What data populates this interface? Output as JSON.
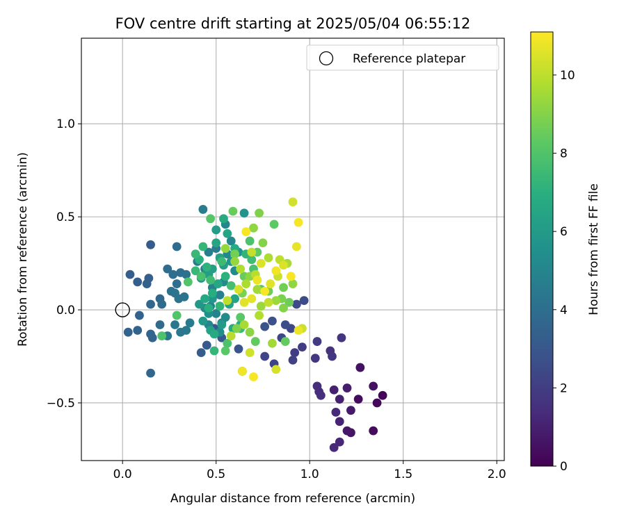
{
  "chart_data": {
    "type": "scatter",
    "title": "FOV centre drift starting at 2025/05/04 06:55:12",
    "xlabel": "Angular distance from reference (arcmin)",
    "ylabel": "Rotation from reference (arcmin)",
    "xlim": [
      -0.22,
      2.04
    ],
    "ylim": [
      -0.81,
      1.46
    ],
    "xticks": [
      0.0,
      0.5,
      1.0,
      1.5,
      2.0
    ],
    "xtick_labels": [
      "0.0",
      "0.5",
      "1.0",
      "1.5",
      "2.0"
    ],
    "yticks": [
      -0.5,
      0.0,
      0.5,
      1.0
    ],
    "ytick_labels": [
      "−0.5",
      "0.0",
      "0.5",
      "1.0"
    ],
    "grid": true,
    "legend": {
      "placement": "top-right",
      "entries": [
        {
          "label": "Reference platepar",
          "marker": "open-circle",
          "x": 0.0,
          "y": 0.0
        }
      ]
    },
    "colorbar": {
      "label": "Hours from first FF file",
      "colormap": "viridis",
      "range": [
        0,
        11.1
      ],
      "ticks": [
        0,
        2,
        4,
        6,
        8,
        10
      ],
      "tick_labels": [
        "0",
        "2",
        "4",
        "6",
        "8",
        "10"
      ]
    },
    "points": [
      [
        1.39,
        -0.46,
        0.1
      ],
      [
        1.36,
        -0.5,
        0.2
      ],
      [
        1.34,
        -0.65,
        0.3
      ],
      [
        1.26,
        -0.48,
        0.3
      ],
      [
        1.34,
        -0.41,
        0.5
      ],
      [
        1.27,
        -0.31,
        0.5
      ],
      [
        1.22,
        -0.66,
        0.6
      ],
      [
        1.2,
        -0.65,
        0.7
      ],
      [
        1.22,
        -0.54,
        0.8
      ],
      [
        1.2,
        -0.42,
        0.9
      ],
      [
        1.16,
        -0.48,
        1.0
      ],
      [
        1.13,
        -0.43,
        1.0
      ],
      [
        1.16,
        -0.6,
        1.1
      ],
      [
        1.16,
        -0.71,
        1.2
      ],
      [
        1.13,
        -0.74,
        1.3
      ],
      [
        1.14,
        -0.55,
        1.3
      ],
      [
        1.05,
        -0.44,
        1.4
      ],
      [
        1.04,
        -0.41,
        1.5
      ],
      [
        1.06,
        -0.46,
        1.5
      ],
      [
        1.11,
        -0.22,
        1.6
      ],
      [
        1.12,
        -0.25,
        1.7
      ],
      [
        1.17,
        -0.15,
        1.7
      ],
      [
        1.03,
        -0.26,
        1.8
      ],
      [
        1.04,
        -0.17,
        1.9
      ],
      [
        0.96,
        -0.2,
        2.0
      ],
      [
        0.92,
        -0.23,
        2.0
      ],
      [
        0.91,
        -0.27,
        2.1
      ],
      [
        0.81,
        -0.29,
        2.2
      ],
      [
        0.76,
        -0.25,
        2.3
      ],
      [
        0.85,
        -0.15,
        2.4
      ],
      [
        0.9,
        -0.1,
        2.4
      ],
      [
        0.93,
        0.03,
        2.5
      ],
      [
        0.97,
        0.05,
        2.5
      ],
      [
        0.87,
        -0.08,
        2.6
      ],
      [
        0.8,
        -0.06,
        2.7
      ],
      [
        0.76,
        -0.09,
        2.8
      ],
      [
        0.62,
        -0.21,
        2.9
      ],
      [
        0.53,
        -0.15,
        3.0
      ],
      [
        0.49,
        -0.1,
        3.0
      ],
      [
        0.45,
        -0.19,
        3.1
      ],
      [
        0.42,
        -0.23,
        3.2
      ],
      [
        0.15,
        0.35,
        3.2
      ],
      [
        0.04,
        0.19,
        3.3
      ],
      [
        0.08,
        0.15,
        3.3
      ],
      [
        0.14,
        0.17,
        3.4
      ],
      [
        0.13,
        0.14,
        3.4
      ],
      [
        0.03,
        -0.12,
        3.5
      ],
      [
        0.09,
        -0.03,
        3.5
      ],
      [
        0.08,
        -0.11,
        3.5
      ],
      [
        0.15,
        -0.13,
        3.6
      ],
      [
        0.16,
        -0.15,
        3.6
      ],
      [
        0.15,
        -0.34,
        3.7
      ],
      [
        0.2,
        0.06,
        3.7
      ],
      [
        0.15,
        0.03,
        3.7
      ],
      [
        0.21,
        0.03,
        3.8
      ],
      [
        0.2,
        -0.08,
        3.8
      ],
      [
        0.29,
        0.34,
        3.9
      ],
      [
        0.24,
        0.22,
        3.9
      ],
      [
        0.27,
        0.19,
        4.0
      ],
      [
        0.29,
        0.14,
        4.0
      ],
      [
        0.31,
        0.2,
        4.0
      ],
      [
        0.34,
        0.19,
        4.1
      ],
      [
        0.26,
        0.1,
        4.1
      ],
      [
        0.28,
        0.09,
        4.2
      ],
      [
        0.3,
        0.06,
        4.2
      ],
      [
        0.33,
        0.07,
        4.2
      ],
      [
        0.24,
        -0.14,
        4.3
      ],
      [
        0.28,
        -0.08,
        4.3
      ],
      [
        0.31,
        -0.12,
        4.4
      ],
      [
        0.34,
        -0.11,
        4.4
      ],
      [
        0.36,
        -0.07,
        4.5
      ],
      [
        0.4,
        0.26,
        4.5
      ],
      [
        0.44,
        0.22,
        4.6
      ],
      [
        0.43,
        0.54,
        4.6
      ],
      [
        0.46,
        0.31,
        4.7
      ],
      [
        0.5,
        0.33,
        4.7
      ],
      [
        0.48,
        0.12,
        4.8
      ],
      [
        0.52,
        0.08,
        4.8
      ],
      [
        0.47,
        0.02,
        4.9
      ],
      [
        0.5,
        -0.02,
        4.9
      ],
      [
        0.46,
        -0.08,
        5.0
      ],
      [
        0.53,
        -0.07,
        5.0
      ],
      [
        0.55,
        0.46,
        5.1
      ],
      [
        0.58,
        0.37,
        5.1
      ],
      [
        0.56,
        0.3,
        5.2
      ],
      [
        0.6,
        0.21,
        5.2
      ],
      [
        0.54,
        0.15,
        5.3
      ],
      [
        0.55,
        -0.04,
        5.3
      ],
      [
        0.52,
        -0.12,
        5.4
      ],
      [
        0.44,
        0.01,
        5.4
      ],
      [
        0.46,
        -0.02,
        5.5
      ],
      [
        0.64,
        -0.33,
        5.5
      ],
      [
        0.65,
        0.52,
        5.6
      ],
      [
        0.62,
        0.31,
        5.6
      ],
      [
        0.58,
        0.26,
        5.7
      ],
      [
        0.45,
        0.2,
        5.7
      ],
      [
        0.42,
        0.17,
        5.8
      ],
      [
        0.48,
        0.06,
        5.8
      ],
      [
        0.41,
        0.03,
        5.9
      ],
      [
        0.43,
        -0.06,
        5.9
      ],
      [
        0.53,
        -0.08,
        6.0
      ],
      [
        0.5,
        0.43,
        6.1
      ],
      [
        0.54,
        0.24,
        6.1
      ],
      [
        0.48,
        0.22,
        6.2
      ],
      [
        0.46,
        0.19,
        6.2
      ],
      [
        0.52,
        0.28,
        6.3
      ],
      [
        0.47,
        -0.11,
        6.3
      ],
      [
        0.57,
        0.03,
        6.4
      ],
      [
        0.6,
        0.06,
        6.4
      ],
      [
        0.5,
        0.36,
        6.5
      ],
      [
        0.56,
        0.41,
        6.5
      ],
      [
        0.51,
        0.14,
        6.6
      ],
      [
        0.44,
        0.06,
        6.6
      ],
      [
        0.49,
        -0.13,
        6.7
      ],
      [
        0.54,
        0.49,
        6.7
      ],
      [
        0.6,
        0.33,
        6.8
      ],
      [
        0.59,
        -0.1,
        6.8
      ],
      [
        0.63,
        -0.08,
        6.9
      ],
      [
        0.48,
        0.09,
        6.9
      ],
      [
        0.46,
        0.01,
        7.0
      ],
      [
        0.41,
        0.27,
        7.0
      ],
      [
        0.45,
        0.23,
        7.1
      ],
      [
        0.55,
        0.18,
        7.1
      ],
      [
        0.52,
        0.02,
        7.2
      ],
      [
        0.66,
        0.3,
        7.2
      ],
      [
        0.49,
        -0.22,
        7.3
      ],
      [
        0.43,
        0.34,
        7.3
      ],
      [
        0.39,
        0.3,
        7.4
      ],
      [
        0.39,
        0.21,
        7.4
      ],
      [
        0.53,
        0.26,
        7.5
      ],
      [
        0.63,
        -0.1,
        7.5
      ],
      [
        0.47,
        0.16,
        7.6
      ],
      [
        0.69,
        0.27,
        7.6
      ],
      [
        0.58,
        0.13,
        7.7
      ],
      [
        0.7,
        0.22,
        7.8
      ],
      [
        0.42,
        0.18,
        7.8
      ],
      [
        0.56,
        -0.18,
        7.9
      ],
      [
        0.68,
        0.37,
        7.9
      ],
      [
        0.21,
        -0.14,
        7.9
      ],
      [
        0.29,
        -0.03,
        8.0
      ],
      [
        0.35,
        0.15,
        8.0
      ],
      [
        0.47,
        0.49,
        8.1
      ],
      [
        0.74,
        0.11,
        8.1
      ],
      [
        0.63,
        -0.04,
        8.2
      ],
      [
        0.55,
        -0.22,
        8.2
      ],
      [
        0.72,
        0.31,
        8.3
      ],
      [
        0.81,
        0.46,
        8.3
      ],
      [
        0.87,
        -0.17,
        8.4
      ],
      [
        0.71,
        -0.17,
        8.4
      ],
      [
        0.65,
        0.18,
        8.5
      ],
      [
        0.59,
        0.53,
        8.5
      ],
      [
        0.89,
        0.04,
        8.6
      ],
      [
        0.78,
        0.1,
        8.6
      ],
      [
        0.86,
        0.12,
        8.7
      ],
      [
        0.6,
        0.3,
        8.7
      ],
      [
        0.64,
        0.09,
        8.8
      ],
      [
        0.85,
        0.06,
        8.8
      ],
      [
        0.61,
        -0.1,
        8.9
      ],
      [
        0.73,
        0.52,
        8.9
      ],
      [
        0.86,
        0.01,
        9.0
      ],
      [
        0.75,
        0.36,
        9.0
      ],
      [
        0.68,
        -0.12,
        9.1
      ],
      [
        0.68,
        0.18,
        9.1
      ],
      [
        0.91,
        0.14,
        9.2
      ],
      [
        0.7,
        0.44,
        9.2
      ],
      [
        0.55,
        0.33,
        9.3
      ],
      [
        0.6,
        0.26,
        9.3
      ],
      [
        0.74,
        0.02,
        9.4
      ],
      [
        0.82,
        0.05,
        9.4
      ],
      [
        0.72,
        0.11,
        9.5
      ],
      [
        0.8,
        -0.18,
        9.5
      ],
      [
        0.65,
        -0.08,
        9.6
      ],
      [
        0.88,
        0.25,
        9.6
      ],
      [
        0.66,
        0.14,
        9.7
      ],
      [
        0.78,
        0.28,
        9.7
      ],
      [
        0.63,
        0.22,
        9.8
      ],
      [
        0.73,
        -0.03,
        9.8
      ],
      [
        0.58,
        -0.14,
        9.9
      ],
      [
        0.71,
        0.19,
        9.9
      ],
      [
        0.84,
        0.27,
        10.0
      ],
      [
        0.56,
        0.05,
        10.0
      ],
      [
        0.78,
        0.04,
        10.1
      ],
      [
        0.69,
        0.31,
        10.1
      ],
      [
        0.96,
        -0.1,
        10.2
      ],
      [
        0.83,
        0.18,
        10.2
      ],
      [
        0.68,
        -0.23,
        10.3
      ],
      [
        0.91,
        0.58,
        10.3
      ],
      [
        0.82,
        -0.32,
        10.4
      ],
      [
        0.62,
        0.11,
        10.4
      ],
      [
        0.74,
        0.25,
        10.5
      ],
      [
        0.86,
        0.24,
        10.5
      ],
      [
        0.65,
        0.04,
        10.6
      ],
      [
        0.79,
        0.14,
        10.6
      ],
      [
        0.93,
        0.34,
        10.7
      ],
      [
        0.69,
        0.06,
        10.7
      ],
      [
        0.72,
        0.16,
        10.8
      ],
      [
        0.94,
        -0.11,
        10.8
      ],
      [
        0.64,
        -0.33,
        10.9
      ],
      [
        0.82,
        0.21,
        10.9
      ],
      [
        0.7,
        -0.36,
        11.0
      ],
      [
        0.9,
        0.18,
        11.0
      ],
      [
        0.76,
        0.1,
        11.0
      ],
      [
        0.94,
        0.47,
        11.0
      ],
      [
        0.66,
        0.42,
        11.0
      ]
    ]
  }
}
